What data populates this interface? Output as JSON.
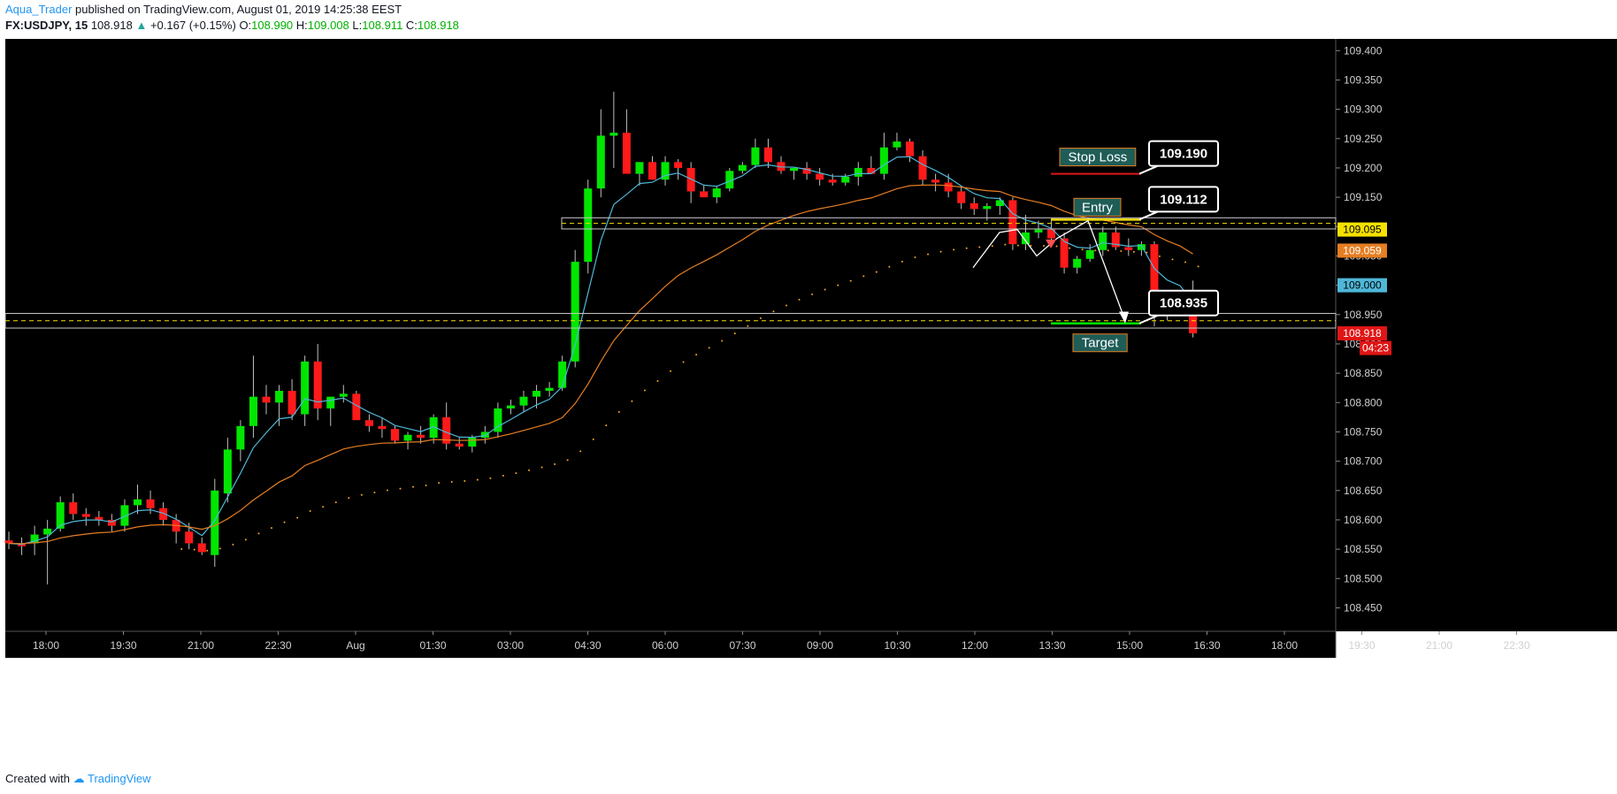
{
  "header": {
    "author": "Aqua_Trader",
    "published_text": "published on TradingView.com, August 01, 2019 14:25:38 EEST",
    "symbol": "FX:USDJPY, 15",
    "last_price": "108.918",
    "change": "+0.167 (+0.15%)",
    "o_label": "O:",
    "o_value": "108.990",
    "h_label": "H:",
    "h_value": "109.008",
    "l_label": "L:",
    "l_value": "108.911",
    "c_label": "C:",
    "c_value": "108.918"
  },
  "footer": {
    "created_with": "Created with",
    "brand": "TradingView"
  },
  "colors": {
    "background": "#000000",
    "up_candle": "#00e600",
    "down_candle": "#ff1a1a",
    "ema_fast": "#4fb7d8",
    "ema_slow": "#e67e22",
    "sar_dots": "#f5a623",
    "entry": "#f5e100",
    "stop_loss": "#e01515",
    "target": "#00e600",
    "label_bg": "#1f5d57",
    "label_border": "#e67e22"
  },
  "chart_data": {
    "type": "candlestick",
    "x_ticks": [
      "18:00",
      "19:30",
      "21:00",
      "22:30",
      "Aug",
      "01:30",
      "03:00",
      "04:30",
      "06:00",
      "07:30",
      "09:00",
      "10:30",
      "12:00",
      "13:30",
      "15:00",
      "16:30",
      "18:00",
      "19:30",
      "21:00",
      "22:30"
    ],
    "y_ticks": [
      "109.400",
      "109.350",
      "109.300",
      "109.250",
      "109.200",
      "109.150",
      "109.100",
      "109.050",
      "109.000",
      "108.950",
      "108.900",
      "108.850",
      "108.800",
      "108.750",
      "108.700",
      "108.650",
      "108.600",
      "108.550",
      "108.500",
      "108.450"
    ],
    "ylim": [
      108.41,
      109.42
    ],
    "candles": [
      [
        108.565,
        108.58,
        108.55,
        108.56
      ],
      [
        108.56,
        108.57,
        108.54,
        108.555
      ],
      [
        108.56,
        108.59,
        108.54,
        108.575
      ],
      [
        108.575,
        108.6,
        108.49,
        108.585
      ],
      [
        108.585,
        108.64,
        108.58,
        108.63
      ],
      [
        108.63,
        108.645,
        108.6,
        108.61
      ],
      [
        108.61,
        108.62,
        108.59,
        108.605
      ],
      [
        108.605,
        108.615,
        108.59,
        108.6
      ],
      [
        108.6,
        108.61,
        108.58,
        108.59
      ],
      [
        108.59,
        108.635,
        108.58,
        108.625
      ],
      [
        108.625,
        108.66,
        108.61,
        108.635
      ],
      [
        108.635,
        108.65,
        108.61,
        108.62
      ],
      [
        108.62,
        108.63,
        108.59,
        108.6
      ],
      [
        108.6,
        108.61,
        108.56,
        108.58
      ],
      [
        108.58,
        108.595,
        108.55,
        108.56
      ],
      [
        108.56,
        108.57,
        108.54,
        108.545
      ],
      [
        108.54,
        108.67,
        108.52,
        108.65
      ],
      [
        108.645,
        108.74,
        108.63,
        108.72
      ],
      [
        108.72,
        108.77,
        108.7,
        108.76
      ],
      [
        108.76,
        108.88,
        108.74,
        108.81
      ],
      [
        108.81,
        108.83,
        108.78,
        108.8
      ],
      [
        108.8,
        108.83,
        108.76,
        108.82
      ],
      [
        108.82,
        108.84,
        108.77,
        108.78
      ],
      [
        108.78,
        108.88,
        108.76,
        108.87
      ],
      [
        108.87,
        108.9,
        108.77,
        108.79
      ],
      [
        108.79,
        108.8,
        108.76,
        108.81
      ],
      [
        108.81,
        108.83,
        108.8,
        108.815
      ],
      [
        108.815,
        108.82,
        108.78,
        108.77
      ],
      [
        108.77,
        108.78,
        108.75,
        108.76
      ],
      [
        108.76,
        108.775,
        108.74,
        108.755
      ],
      [
        108.755,
        108.76,
        108.73,
        108.735
      ],
      [
        108.735,
        108.75,
        108.72,
        108.745
      ],
      [
        108.745,
        108.76,
        108.73,
        108.74
      ],
      [
        108.74,
        108.78,
        108.73,
        108.775
      ],
      [
        108.775,
        108.8,
        108.72,
        108.73
      ],
      [
        108.73,
        108.74,
        108.72,
        108.725
      ],
      [
        108.725,
        108.745,
        108.715,
        108.74
      ],
      [
        108.74,
        108.76,
        108.73,
        108.75
      ],
      [
        108.75,
        108.8,
        108.74,
        108.79
      ],
      [
        108.79,
        108.805,
        108.78,
        108.795
      ],
      [
        108.795,
        108.82,
        108.785,
        108.81
      ],
      [
        108.81,
        108.83,
        108.79,
        108.82
      ],
      [
        108.82,
        108.835,
        108.81,
        108.825
      ],
      [
        108.825,
        108.88,
        108.82,
        108.87
      ],
      [
        108.87,
        109.06,
        108.86,
        109.04
      ],
      [
        109.04,
        109.18,
        109.02,
        109.165
      ],
      [
        109.165,
        109.3,
        109.15,
        109.255
      ],
      [
        109.255,
        109.33,
        109.2,
        109.26
      ],
      [
        109.26,
        109.3,
        109.2,
        109.19
      ],
      [
        109.19,
        109.21,
        109.17,
        109.21
      ],
      [
        109.21,
        109.22,
        109.18,
        109.18
      ],
      [
        109.18,
        109.22,
        109.17,
        109.21
      ],
      [
        109.21,
        109.215,
        109.18,
        109.2
      ],
      [
        109.2,
        109.21,
        109.14,
        109.16
      ],
      [
        109.16,
        109.17,
        109.15,
        109.15
      ],
      [
        109.15,
        109.17,
        109.14,
        109.165
      ],
      [
        109.165,
        109.2,
        109.16,
        109.195
      ],
      [
        109.195,
        109.21,
        109.19,
        109.205
      ],
      [
        109.205,
        109.25,
        109.2,
        109.235
      ],
      [
        109.235,
        109.25,
        109.2,
        109.21
      ],
      [
        109.21,
        109.22,
        109.19,
        109.195
      ],
      [
        109.195,
        109.2,
        109.18,
        109.2
      ],
      [
        109.2,
        109.21,
        109.18,
        109.19
      ],
      [
        109.19,
        109.2,
        109.17,
        109.18
      ],
      [
        109.18,
        109.19,
        109.17,
        109.175
      ],
      [
        109.175,
        109.19,
        109.17,
        109.185
      ],
      [
        109.185,
        109.21,
        109.17,
        109.2
      ],
      [
        109.2,
        109.22,
        109.19,
        109.19
      ],
      [
        109.19,
        109.26,
        109.18,
        109.235
      ],
      [
        109.235,
        109.26,
        109.23,
        109.245
      ],
      [
        109.245,
        109.25,
        109.21,
        109.22
      ],
      [
        109.22,
        109.23,
        109.17,
        109.18
      ],
      [
        109.18,
        109.19,
        109.16,
        109.175
      ],
      [
        109.175,
        109.19,
        109.15,
        109.16
      ],
      [
        109.16,
        109.17,
        109.13,
        109.14
      ],
      [
        109.14,
        109.15,
        109.12,
        109.13
      ],
      [
        109.13,
        109.14,
        109.11,
        109.135
      ],
      [
        109.135,
        109.15,
        109.12,
        109.145
      ],
      [
        109.145,
        109.15,
        109.06,
        109.07
      ],
      [
        109.07,
        109.12,
        109.06,
        109.09
      ],
      [
        109.09,
        109.11,
        109.08,
        109.095
      ],
      [
        109.095,
        109.11,
        109.07,
        109.08
      ],
      [
        109.08,
        109.09,
        109.02,
        109.03
      ],
      [
        109.03,
        109.05,
        109.02,
        109.045
      ],
      [
        109.045,
        109.07,
        109.04,
        109.06
      ],
      [
        109.06,
        109.1,
        109.05,
        109.09
      ],
      [
        109.09,
        109.1,
        109.06,
        109.065
      ],
      [
        109.065,
        109.08,
        109.05,
        109.06
      ],
      [
        109.06,
        109.075,
        109.05,
        109.07
      ],
      [
        109.07,
        109.075,
        108.93,
        108.95
      ],
      [
        108.95,
        108.98,
        108.94,
        108.97
      ],
      [
        108.97,
        108.985,
        108.965,
        108.98
      ],
      [
        108.99,
        109.008,
        108.911,
        108.918
      ]
    ],
    "stop_loss": {
      "label": "Stop Loss",
      "value": "109.190",
      "price": 109.19
    },
    "entry": {
      "label": "Entry",
      "value": "109.112",
      "price": 109.112
    },
    "target": {
      "label": "Target",
      "value": "108.935",
      "price": 108.935
    },
    "price_tags": [
      {
        "text": "109.095",
        "price": 109.095,
        "bg": "#f5e100",
        "fg": "#000000"
      },
      {
        "text": "109.059",
        "price": 109.059,
        "bg": "#e67e22",
        "fg": "#ffffff"
      },
      {
        "text": "109.000",
        "price": 109.0,
        "bg": "#4fb7d8",
        "fg": "#000000"
      },
      {
        "text": "108.918",
        "price": 108.918,
        "bg": "#e01515",
        "fg": "#ffffff"
      },
      {
        "text": "04:23",
        "price": 108.893,
        "bg": "#e01515",
        "fg": "#ffffff"
      }
    ]
  }
}
